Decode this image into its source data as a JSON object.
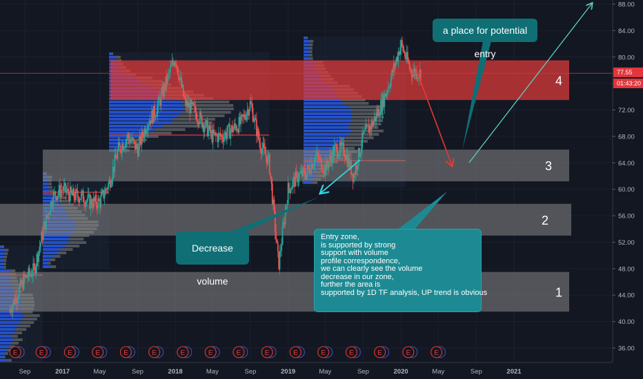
{
  "chart_data": {
    "type": "line",
    "title": "",
    "xlabel": "",
    "ylabel": "",
    "ylim": [
      34,
      89
    ],
    "y_ticks": [
      "36.00",
      "40.00",
      "44.00",
      "48.00",
      "52.00",
      "56.00",
      "60.00",
      "64.00",
      "68.00",
      "72.00",
      "76.00",
      "80.00",
      "84.00",
      "88.00"
    ],
    "x_ticks": [
      "Sep",
      "2017",
      "May",
      "Sep",
      "2018",
      "May",
      "Sep",
      "2019",
      "May",
      "Sep",
      "2020",
      "May",
      "Sep",
      "2021"
    ],
    "x_range": [
      "2016-07-15",
      "2021-03-15"
    ],
    "grid": true,
    "series": [
      {
        "x": [
          "2016-07-01",
          "2016-08-01",
          "2016-09-01",
          "2016-10-01",
          "2016-11-01",
          "2016-12-01",
          "2017-01-01",
          "2017-02-01",
          "2017-03-01",
          "2017-04-01",
          "2017-05-01",
          "2017-06-01",
          "2017-07-01",
          "2017-08-01",
          "2017-09-01",
          "2017-10-01",
          "2017-11-01",
          "2017-12-01",
          "2018-01-01",
          "2018-02-01",
          "2018-03-01",
          "2018-04-01",
          "2018-05-01",
          "2018-06-01",
          "2018-07-01",
          "2018-08-01",
          "2018-09-01",
          "2018-10-01",
          "2018-11-01",
          "2018-12-01",
          "2019-01-01",
          "2019-02-01",
          "2019-03-01",
          "2019-04-01",
          "2019-05-01",
          "2019-06-01",
          "2019-07-01",
          "2019-08-01",
          "2019-09-01",
          "2019-10-01",
          "2019-11-01",
          "2019-12-01",
          "2020-01-01",
          "2020-02-01",
          "2020-03-01"
        ],
        "values": [
          40.5,
          43.5,
          46.5,
          47.8,
          54.0,
          59.0,
          60.0,
          59.0,
          59.0,
          58.0,
          58.0,
          61.0,
          66.0,
          68.0,
          66.0,
          70.0,
          72.0,
          76.0,
          80.0,
          73.0,
          72.0,
          70.0,
          68.0,
          68.0,
          69.0,
          70.0,
          73.0,
          67.0,
          64.0,
          48.5,
          60.0,
          62.0,
          62.5,
          65.0,
          63.0,
          66.0,
          66.0,
          62.0,
          68.0,
          70.0,
          73.0,
          77.0,
          82.0,
          78.0,
          77.55
        ]
      }
    ],
    "zones": [
      {
        "label": "4",
        "y_low": 73.5,
        "y_high": 79.5,
        "color": "#e03a3a"
      },
      {
        "label": "3",
        "y_low": 61.2,
        "y_high": 66.0,
        "color": "#878787"
      },
      {
        "label": "2",
        "y_low": 53.0,
        "y_high": 57.8,
        "color": "#878787"
      },
      {
        "label": "1",
        "y_low": 41.5,
        "y_high": 47.5,
        "color": "#878787"
      }
    ],
    "earnings_markers": [
      "2016-08-01",
      "2016-10-25",
      "2017-01-25",
      "2017-04-25",
      "2017-07-25",
      "2017-10-25",
      "2018-01-25",
      "2018-04-25",
      "2018-07-25",
      "2018-10-25",
      "2019-01-25",
      "2019-04-25",
      "2019-07-25",
      "2019-10-25",
      "2020-01-25",
      "2020-04-25"
    ],
    "earnings_label": "E",
    "last_price": "77.55",
    "countdown": "01:43:20"
  },
  "annotations": {
    "entry_callout": "a place for potential entry",
    "decrease_callout": "Decrease volume",
    "zone_callout_lines": [
      "Entry zone,",
      "is supported by strong",
      "support with volume",
      "profile correspondence,",
      "we can clearly see the volume",
      "decrease in our zone,",
      "further the area is",
      "supported by 1D TF analysis, UP trend is obvious"
    ]
  },
  "colors": {
    "background": "#131722",
    "candle_up": "#26a69a",
    "candle_down": "#ef5350",
    "volume_profile_up": "#2962ff",
    "volume_profile_down": "#787878",
    "resistance_zone": "#e03a3a",
    "support_zone": "#878787",
    "callout_bg": "#0f6f75",
    "arrow_red": "#e53935",
    "arrow_teal": "#26a69a"
  }
}
